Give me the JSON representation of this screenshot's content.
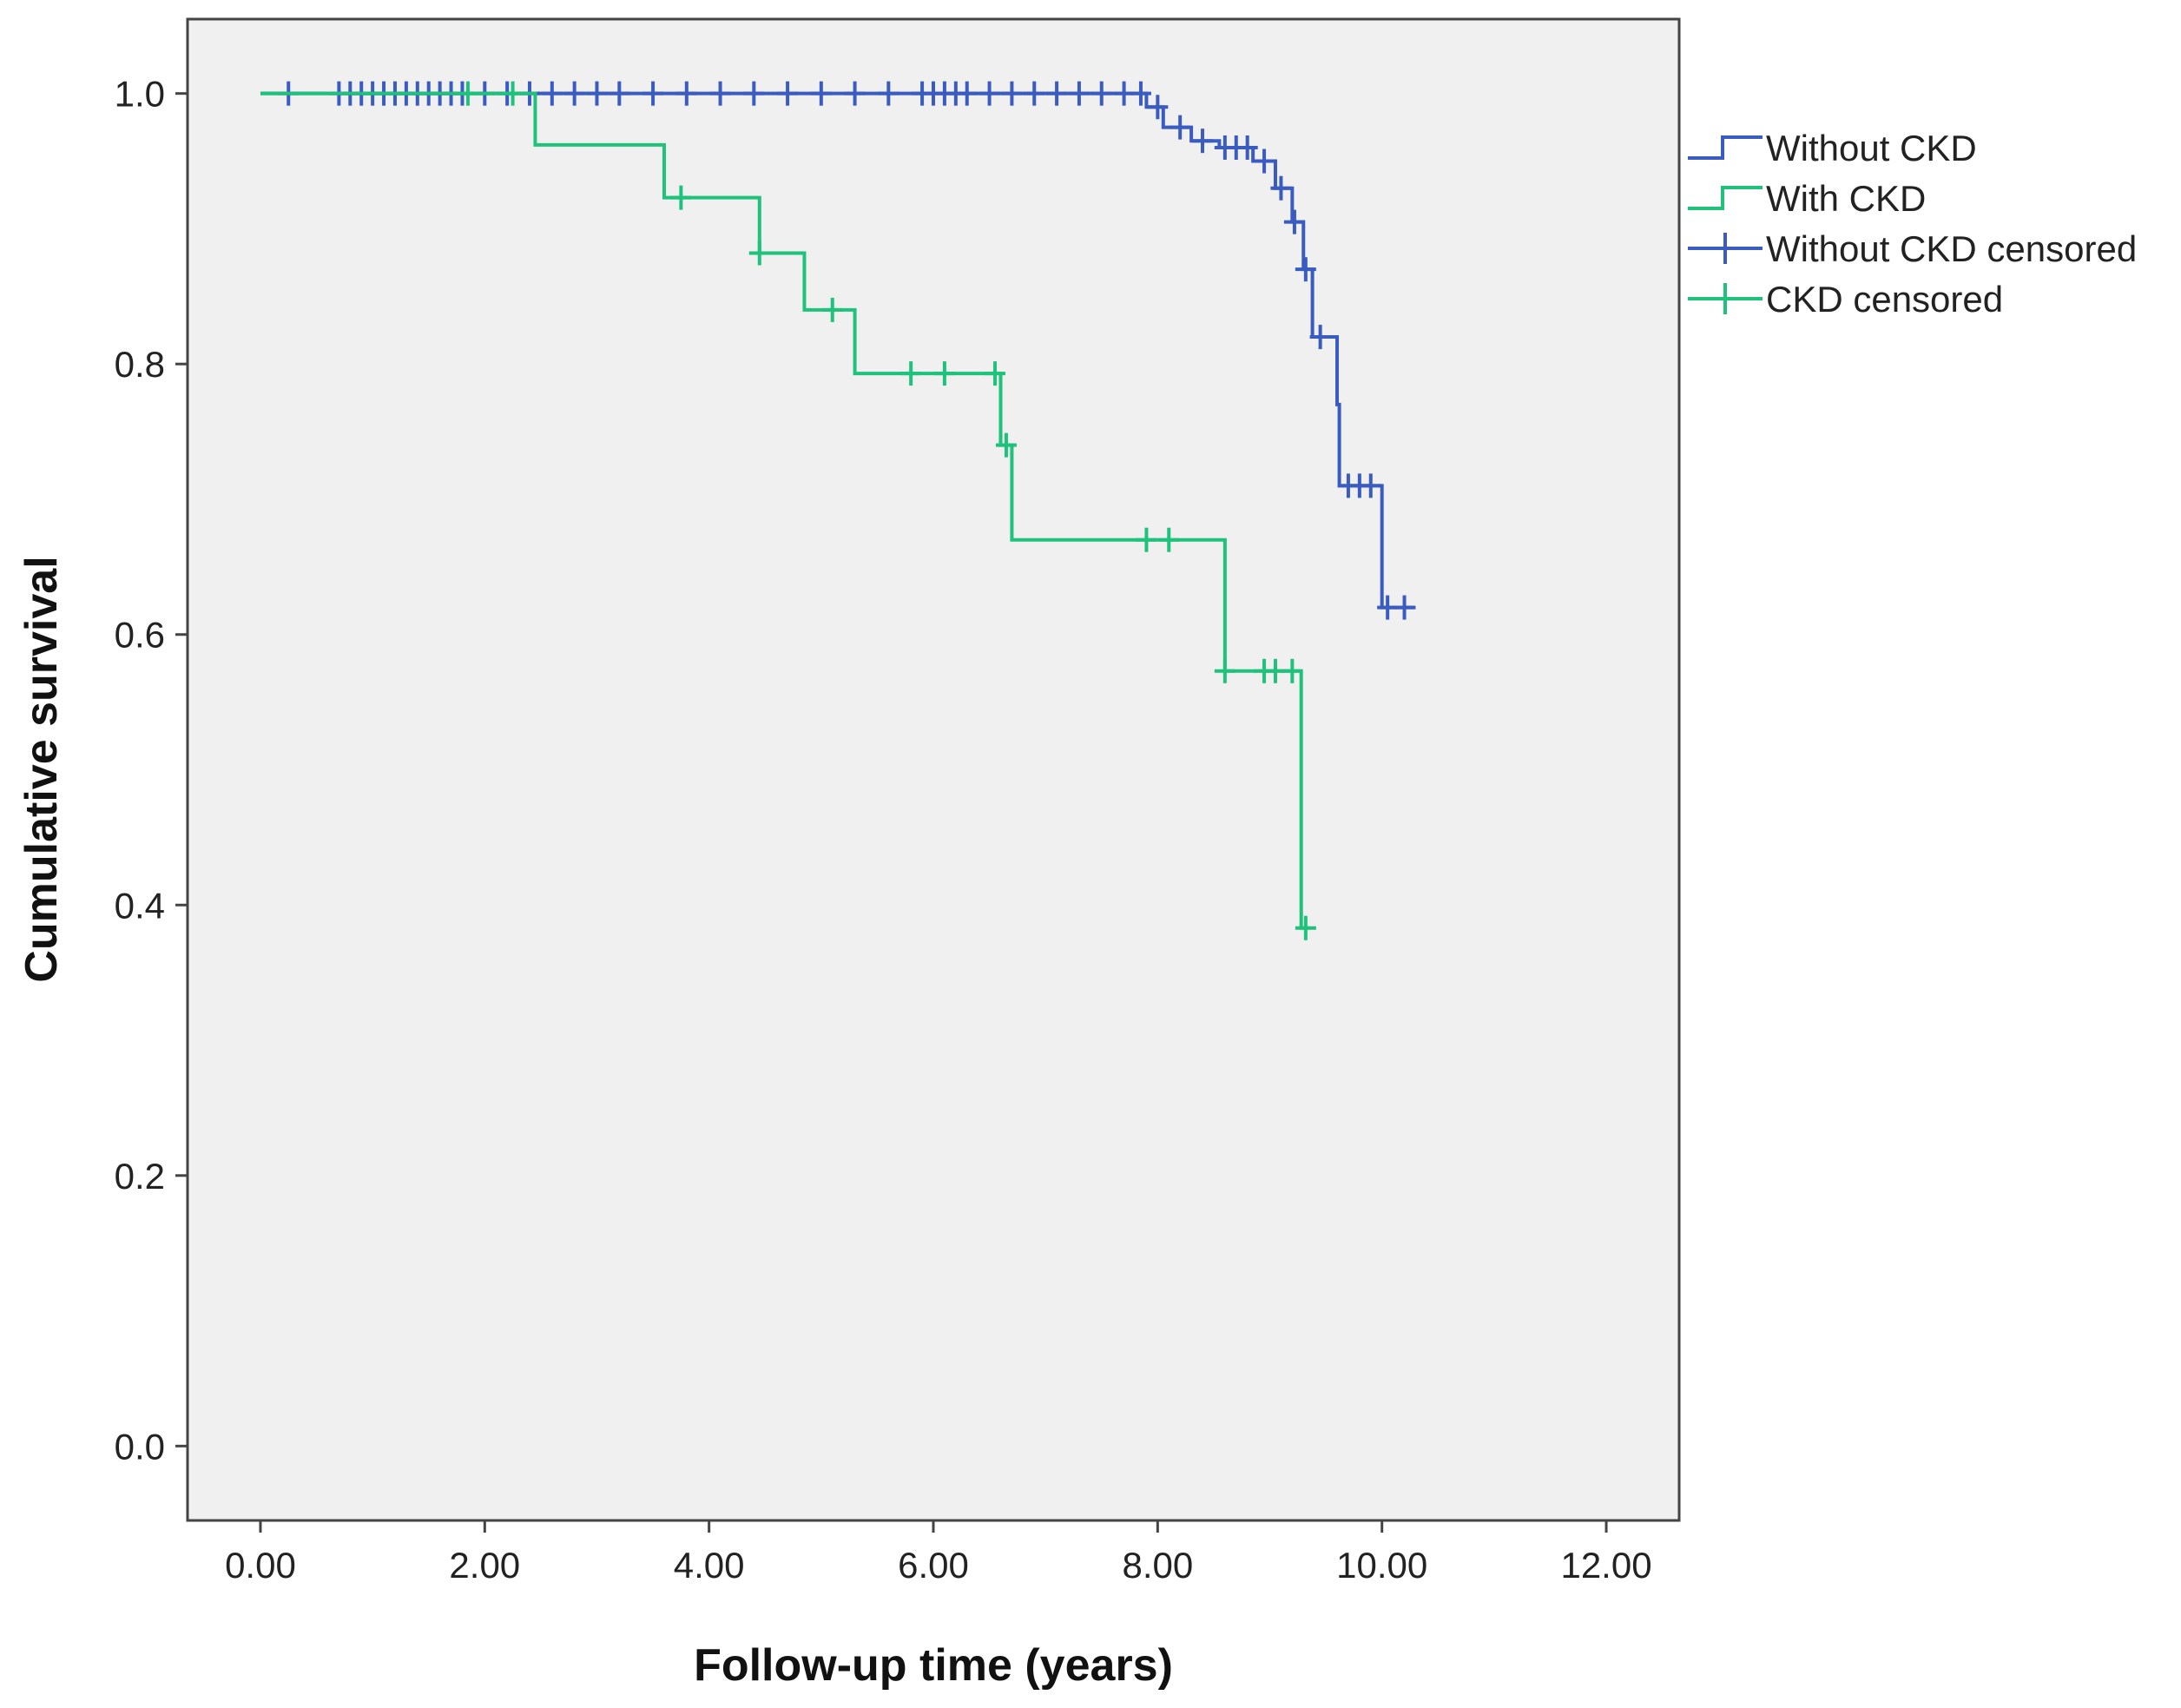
{
  "chart_data": {
    "type": "line",
    "subtype": "kaplan-meier",
    "title": "",
    "xlabel": "Follow-up time (years)",
    "ylabel": "Cumulative survival",
    "xlim": [
      -0.65,
      12.65
    ],
    "ylim": [
      -0.055,
      1.055
    ],
    "x_ticks": [
      0,
      2,
      4,
      6,
      8,
      10,
      12
    ],
    "x_tick_labels": [
      "0.00",
      "2.00",
      "4.00",
      "6.00",
      "8.00",
      "10.00",
      "12.00"
    ],
    "y_ticks": [
      0,
      0.2,
      0.4,
      0.6,
      0.8,
      1.0
    ],
    "y_tick_labels": [
      "0.0",
      "0.2",
      "0.4",
      "0.6",
      "0.8",
      "1.0"
    ],
    "grid": false,
    "legend": {
      "position": "right",
      "entries": [
        "Without CKD",
        "With CKD",
        "Without CKD censored",
        "CKD censored"
      ]
    },
    "series": [
      {
        "name": "Without CKD",
        "censored_name": "Without CKD censored",
        "color": "#3a5bbf",
        "steps": [
          [
            0.0,
            1.0
          ],
          [
            7.9,
            0.99
          ],
          [
            8.05,
            0.975
          ],
          [
            8.3,
            0.965
          ],
          [
            8.55,
            0.96
          ],
          [
            8.85,
            0.95
          ],
          [
            9.05,
            0.93
          ],
          [
            9.2,
            0.905
          ],
          [
            9.3,
            0.87
          ],
          [
            9.38,
            0.82
          ],
          [
            9.6,
            0.77
          ],
          [
            9.62,
            0.71
          ],
          [
            10.0,
            0.62
          ],
          [
            10.3,
            0.62
          ]
        ],
        "censored": [
          0.25,
          0.7,
          0.8,
          0.9,
          1.0,
          1.1,
          1.2,
          1.3,
          1.4,
          1.5,
          1.6,
          1.7,
          1.8,
          2.0,
          2.2,
          2.4,
          2.6,
          2.8,
          3.0,
          3.2,
          3.5,
          3.8,
          4.1,
          4.4,
          4.7,
          5.0,
          5.3,
          5.6,
          5.9,
          6.0,
          6.1,
          6.2,
          6.3,
          6.5,
          6.7,
          6.9,
          7.1,
          7.3,
          7.5,
          7.7,
          7.85,
          8.0,
          8.2,
          8.4,
          8.6,
          8.7,
          8.8,
          8.95,
          9.1,
          9.22,
          9.32,
          9.45,
          9.7,
          9.8,
          9.9,
          10.05,
          10.2
        ]
      },
      {
        "name": "With CKD",
        "censored_name": "CKD censored",
        "color": "#1ec27a",
        "steps": [
          [
            0.0,
            1.0
          ],
          [
            2.45,
            0.962
          ],
          [
            3.6,
            0.923
          ],
          [
            4.45,
            0.882
          ],
          [
            4.85,
            0.84
          ],
          [
            5.3,
            0.793
          ],
          [
            6.6,
            0.74
          ],
          [
            6.7,
            0.67
          ],
          [
            8.6,
            0.573
          ],
          [
            9.28,
            0.383
          ],
          [
            9.35,
            0.383
          ]
        ],
        "censored": [
          1.85,
          2.25,
          3.75,
          4.45,
          5.1,
          5.8,
          6.1,
          6.55,
          6.65,
          7.9,
          8.1,
          8.6,
          8.95,
          9.05,
          9.2,
          9.32
        ]
      }
    ]
  }
}
